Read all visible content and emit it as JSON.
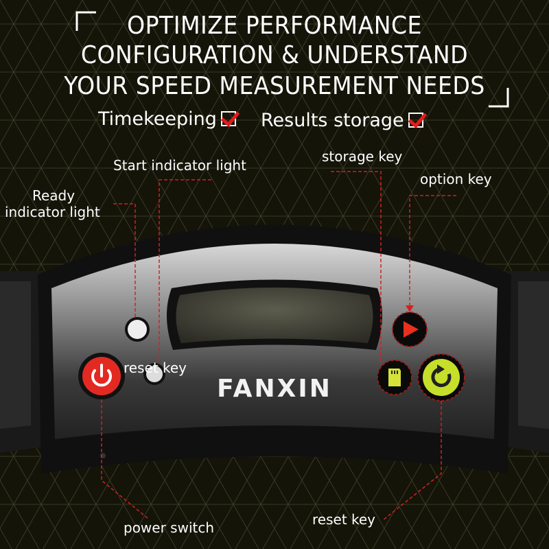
{
  "headline": {
    "lines": [
      "OPTIMIZE PERFORMANCE",
      "CONFIGURATION & UNDERSTAND",
      "YOUR SPEED MEASUREMENT NEEDS"
    ]
  },
  "features": [
    {
      "label": "Timekeeping",
      "checked": true
    },
    {
      "label": "Results storage",
      "checked": true
    }
  ],
  "callouts": {
    "start_light": "Start indicator light",
    "storage_key": "storage key",
    "option_key": "option key",
    "ready_light_line1": "Ready",
    "ready_light_line2": "indicator light",
    "reset_key_left": "reset key",
    "power_switch": "power switch",
    "reset_key_right": "reset key"
  },
  "device": {
    "brand": "FANXIN",
    "icons": [
      "power-icon",
      "play-triangle-icon",
      "sd-card-icon",
      "refresh-icon"
    ]
  },
  "colors": {
    "accent_red": "#e41b1b",
    "reset_green": "#c6e02a",
    "sd_yellow": "#d6e23a",
    "background": "#141409"
  }
}
